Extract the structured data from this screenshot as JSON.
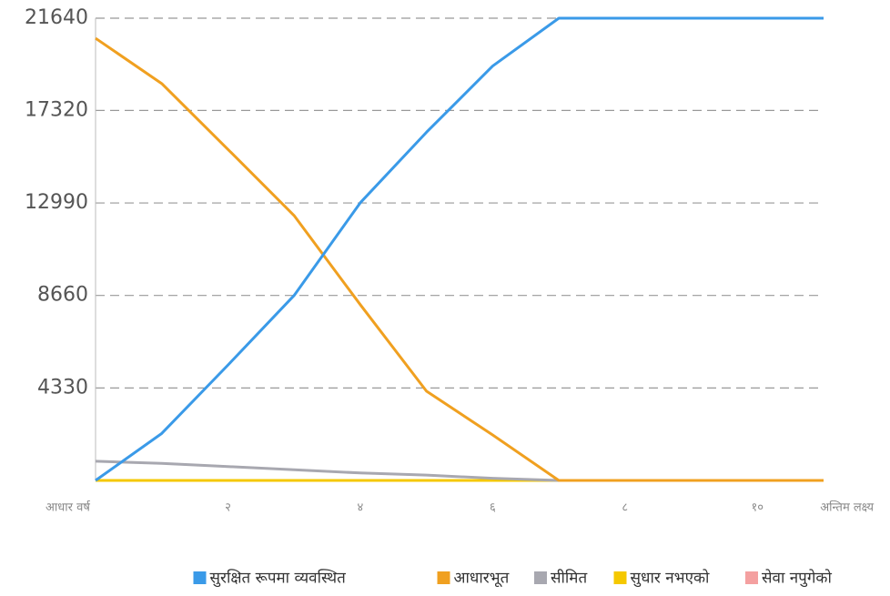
{
  "chart_data": {
    "type": "line",
    "categories": [
      "आधार वर्ष",
      null,
      "२",
      null,
      "४",
      null,
      "६",
      null,
      "८",
      null,
      "१०",
      "अन्तिम लक्ष्य"
    ],
    "series": [
      {
        "name": "सुरक्षित रूपमा व्यवस्थित",
        "color": "#3a9ae8",
        "values": [
          0,
          2200,
          5400,
          8660,
          13000,
          16300,
          19400,
          21640,
          21640,
          21640,
          21640,
          21640
        ]
      },
      {
        "name": "आधारभूत",
        "color": "#f0a020",
        "values": [
          20700,
          18580,
          15500,
          12400,
          8230,
          4180,
          2130,
          0,
          0,
          0,
          0,
          0
        ]
      },
      {
        "name": "सीमित",
        "color": "#a8a8b0",
        "values": [
          900,
          800,
          650,
          500,
          350,
          250,
          100,
          0,
          0,
          0,
          0,
          0
        ]
      },
      {
        "name": "सुधार नभएको",
        "color": "#f5c800",
        "values": [
          0,
          0,
          0,
          0,
          0,
          0,
          0,
          0,
          0,
          0,
          0,
          0
        ]
      },
      {
        "name": "सेवा नपुगेको",
        "color": "#f4a0a0",
        "values": [
          0,
          0,
          0,
          0,
          0,
          0,
          0,
          0,
          0,
          0,
          0,
          0
        ]
      }
    ],
    "ylim": [
      0,
      21640
    ],
    "yticks": [
      4330,
      8660,
      12990,
      17320,
      21640
    ],
    "grid": true
  }
}
